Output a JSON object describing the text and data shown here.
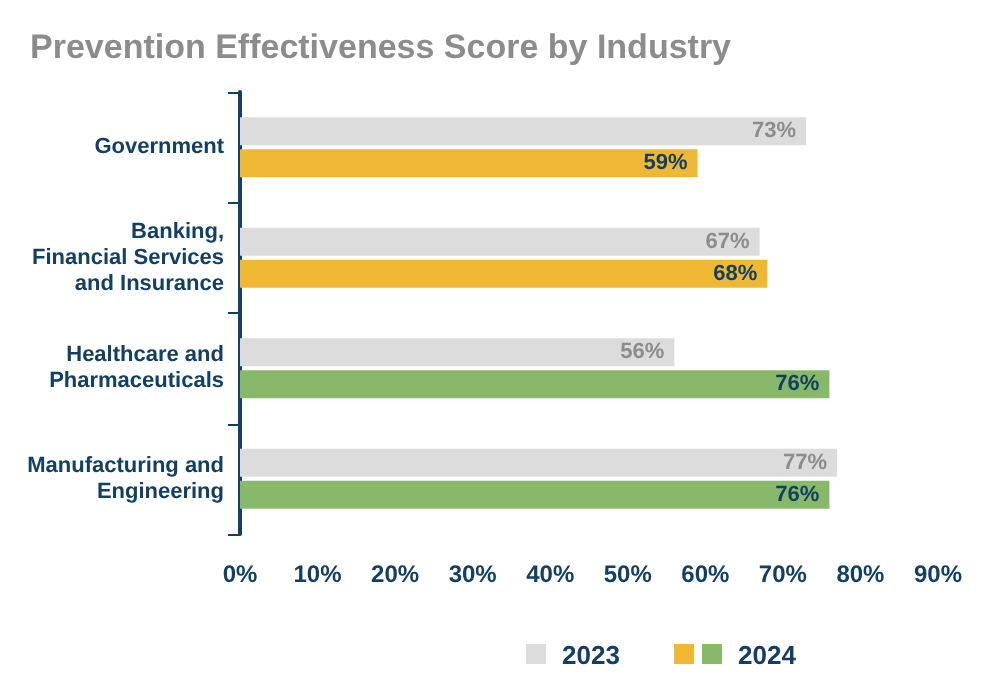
{
  "chart_data": {
    "type": "bar",
    "orientation": "horizontal",
    "title": "Prevention Effectiveness Score by Industry",
    "categories": [
      "Government",
      "Banking,\nFinancial Services\nand Insurance",
      "Healthcare and\nPharmaceuticals",
      "Manufacturing and\nEngineering"
    ],
    "series": [
      {
        "name": "2023",
        "color": "#dcdcdc",
        "values": [
          73,
          67,
          56,
          77
        ],
        "value_labels": [
          "73%",
          "67%",
          "56%",
          "77%"
        ]
      },
      {
        "name": "2024",
        "colors": [
          "#efb834",
          "#efb834",
          "#88b96b",
          "#88b96b"
        ],
        "values": [
          59,
          68,
          76,
          76
        ],
        "value_labels": [
          "59%",
          "68%",
          "76%",
          "76%"
        ]
      }
    ],
    "xlim": [
      0,
      90
    ],
    "xticks": [
      {
        "value": 0,
        "label": "0%"
      },
      {
        "value": 10,
        "label": "10%"
      },
      {
        "value": 20,
        "label": "20%"
      },
      {
        "value": 30,
        "label": "30%"
      },
      {
        "value": 40,
        "label": "40%"
      },
      {
        "value": 50,
        "label": "50%"
      },
      {
        "value": 60,
        "label": "60%"
      },
      {
        "value": 70,
        "label": "70%"
      },
      {
        "value": 80,
        "label": "80%"
      },
      {
        "value": 90,
        "label": "90%"
      }
    ],
    "grid": false,
    "legend": "bottom"
  }
}
